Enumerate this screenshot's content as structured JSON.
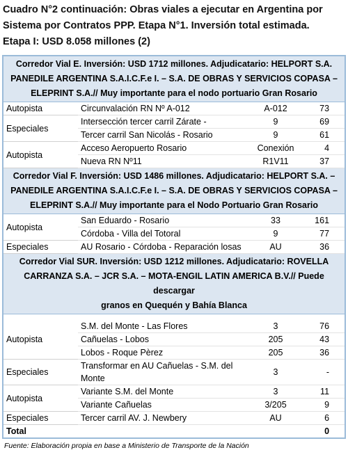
{
  "title": [
    "Cuadro N°2 continuación: Obras viales a ejecutar en Argentina por",
    "Sistema por Contratos PPP. Etapa N°1. Inversión total estimada.",
    "Etapa I: USD 8.058 millones (2)"
  ],
  "sections": [
    {
      "header": [
        "Corredor Vial E. Inversión: USD 1712 millones. Adjudicatario: HELPORT S.A.",
        "PANEDILE ARGENTINA S.A.I.C.F.e I. – S.A. DE OBRAS Y SERVICIOS COPASA –",
        "ELEPRINT S.A.// Muy importante para el nodo portuario Gran Rosario"
      ],
      "groups": [
        {
          "type": "Autopista",
          "rows": [
            [
              "Circunvalación RN Nº A-012",
              "A-012",
              73
            ]
          ]
        },
        {
          "type": "Especiales",
          "rows": [
            [
              "Intersección tercer carril Zárate -",
              "9",
              69
            ],
            [
              "Tercer carril San Nicolás - Rosario",
              "9",
              61
            ]
          ]
        },
        {
          "type": "Autopista",
          "rows": [
            [
              "Acceso Aeropuerto Rosario",
              "Conexión",
              4
            ],
            [
              "Nueva RN Nº11",
              "R1V11",
              37
            ]
          ]
        }
      ]
    },
    {
      "header": [
        "Corredor Vial F. Inversión: USD 1486 millones. Adjudicatario: HELPORT S.A. –",
        "PANEDILE ARGENTINA S.A.I.C.F.e I. – S.A. DE OBRAS Y SERVICIOS COPASA –",
        "ELEPRINT S.A.// Muy importante para el Nodo Portuario Gran Rosario"
      ],
      "groups": [
        {
          "type": "Autopista",
          "rows": [
            [
              "San Eduardo - Rosario",
              "33",
              161
            ],
            [
              "Córdoba - Villa del Totoral",
              "9",
              77
            ]
          ]
        },
        {
          "type": "Especiales",
          "rows": [
            [
              "AU Rosario - Córdoba - Reparación losas",
              "AU",
              36
            ]
          ]
        }
      ]
    },
    {
      "header": [
        "Corredor Vial SUR. Inversión: USD 1212 millones. Adjudicatario: ROVELLA",
        "CARRANZA S.A. – JCR S.A. – MOTA-ENGIL LATIN AMERICA B.V.// Puede descargar",
        "granos en Quequén y Bahía Blanca"
      ],
      "groups": [
        {
          "type": "Autopista",
          "rows": [
            [
              "S.M. del Monte - Las Flores",
              "3",
              76
            ],
            [
              "Cañuelas - Lobos",
              "205",
              43
            ],
            [
              "Lobos - Roque Pèrez",
              "205",
              36
            ]
          ]
        },
        {
          "type": "Especiales",
          "rows": [
            [
              "Transformar en AU Cañuelas - S.M. del Monte",
              "3",
              "-"
            ]
          ]
        },
        {
          "type": "Autopista",
          "rows": [
            [
              "Variante S.M. del Monte",
              "3",
              11
            ],
            [
              "Variante Cañuelas",
              "3/205",
              9
            ]
          ]
        },
        {
          "type": "Especiales",
          "rows": [
            [
              "Tercer carril AV. J. Newbery",
              "AU",
              6
            ]
          ]
        }
      ]
    }
  ],
  "total": {
    "label": "Total",
    "value": 0
  },
  "source": "Fuente: Elaboración propia en base a Ministerio de Transporte de la Nación"
}
